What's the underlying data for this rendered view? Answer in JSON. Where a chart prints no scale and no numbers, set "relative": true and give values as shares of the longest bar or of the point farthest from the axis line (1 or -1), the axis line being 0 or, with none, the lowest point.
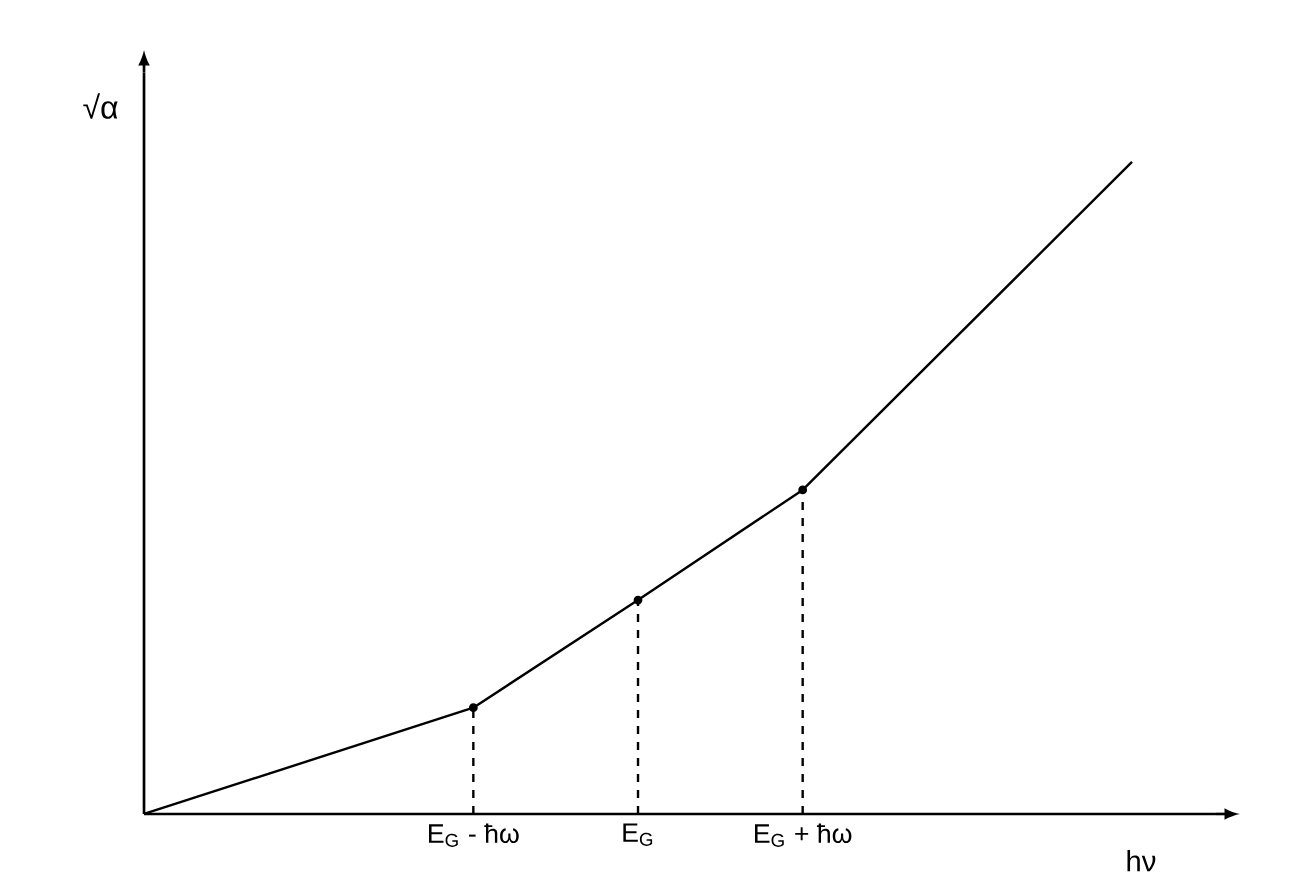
{
  "chart_data": {
    "type": "line",
    "relative": true,
    "xlabel": "hν",
    "ylabel": "√α",
    "categories": [
      null,
      null,
      "E$_{G}$ - ħω",
      "E$_{G}$",
      "E$_{G}$ + ħω",
      null,
      null
    ],
    "series": [
      {
        "color": "#000000",
        "line_style": "solid",
        "marker": "none",
        "values": [
          0,
          null,
          0.163,
          0.328,
          0.497,
          null,
          1
        ]
      },
      {
        "type": "lollipop",
        "color": "#000000",
        "line_style": "dashed",
        "marker": "none",
        "values": [
          null,
          null,
          0.163,
          0.328,
          0.497,
          null,
          null
        ]
      }
    ]
  }
}
